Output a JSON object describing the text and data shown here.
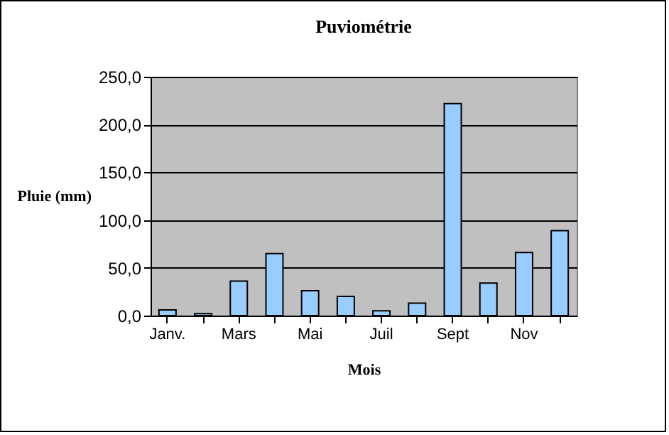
{
  "chart_data": {
    "type": "bar",
    "title": "Puviométrie",
    "xlabel": "Mois",
    "ylabel": "Pluie (mm)",
    "categories": [
      "Janv.",
      null,
      "Mars",
      null,
      "Mai",
      null,
      "Juil",
      null,
      "Sept",
      null,
      "Nov",
      null
    ],
    "values": [
      6,
      2,
      36,
      65,
      26,
      20,
      5,
      13,
      222,
      34,
      66,
      89
    ],
    "color": "#99ccff",
    "ylim": [
      0,
      250
    ],
    "yticks": [
      {
        "value": 0,
        "label": "0,0"
      },
      {
        "value": 50,
        "label": "50,0"
      },
      {
        "value": 100,
        "label": "100,0"
      },
      {
        "value": 150,
        "label": "150,0"
      },
      {
        "value": 200,
        "label": "200,0"
      },
      {
        "value": 250,
        "label": "250,0"
      }
    ],
    "grid": "y"
  }
}
